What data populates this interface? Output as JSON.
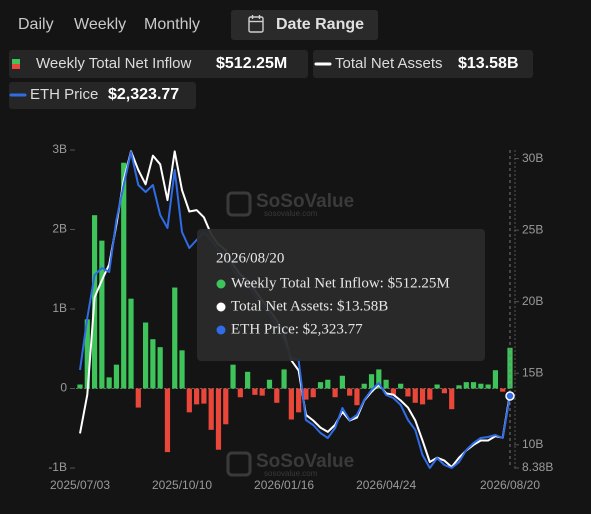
{
  "tabs": [
    "Daily",
    "Weekly",
    "Monthly"
  ],
  "active_tab": 1,
  "date_range": "Date Range",
  "chart_data": {
    "type": "combo",
    "categories": [
      "2025/07/03",
      null,
      null,
      null,
      null,
      null,
      null,
      null,
      null,
      null,
      null,
      null,
      null,
      null,
      "2025/10/10",
      null,
      null,
      null,
      null,
      null,
      null,
      null,
      null,
      null,
      null,
      null,
      null,
      null,
      "2026/01/16",
      null,
      null,
      null,
      null,
      null,
      null,
      null,
      null,
      null,
      null,
      null,
      null,
      null,
      "2026/04/24",
      null,
      null,
      null,
      null,
      null,
      null,
      null,
      null,
      null,
      null,
      null,
      null,
      null,
      null,
      null,
      null,
      "2026/08/20"
    ],
    "series": [
      {
        "name": "Weekly Total Net Inflow",
        "type": "bar",
        "color": "#3ec45a",
        "negative_color": "#e8473a",
        "values": [
          0.05,
          0.87,
          2.18,
          1.86,
          0.14,
          0.3,
          2.84,
          1.13,
          -0.24,
          0.83,
          0.62,
          0.52,
          -0.8,
          1.27,
          0.48,
          -0.3,
          -0.2,
          -0.19,
          -0.52,
          -0.77,
          -0.45,
          0.3,
          -0.11,
          0.21,
          -0.08,
          -0.09,
          0.11,
          -0.18,
          0.24,
          -0.39,
          -0.3,
          -0.14,
          -0.11,
          0.08,
          0.11,
          -0.11,
          0.16,
          -0.09,
          -0.21,
          0.06,
          0.18,
          0.24,
          0.11,
          -0.09,
          0.06,
          -0.1,
          -0.18,
          -0.2,
          -0.14,
          0.05,
          -0.06,
          -0.26,
          0.04,
          0.08,
          0.08,
          0.06,
          0.05,
          0.23,
          -0.04,
          0.51225
        ]
      },
      {
        "name": "Total Net Assets",
        "type": "line",
        "axis": "y2",
        "color": "#ffffff",
        "values": [
          10.8,
          13.5,
          20.3,
          21.5,
          22.6,
          25.4,
          28.5,
          30.5,
          29.2,
          28.2,
          30.2,
          29.6,
          27.1,
          30.5,
          27.8,
          26.3,
          26.4,
          25.9,
          24.7,
          24.0,
          23.6,
          22.6,
          21.9,
          21.5,
          20.8,
          20.1,
          19.4,
          18.7,
          17.7,
          15.9,
          15.2,
          12.1,
          11.7,
          11.2,
          10.9,
          11.4,
          12.3,
          11.7,
          11.9,
          13.1,
          13.7,
          14.2,
          13.6,
          13.5,
          13.1,
          12.6,
          11.7,
          10.3,
          8.8,
          9.1,
          8.9,
          8.45,
          9.1,
          9.6,
          10.0,
          10.3,
          10.3,
          10.6,
          10.5,
          13.58
        ]
      },
      {
        "name": "ETH Price",
        "type": "line",
        "axis": "y3",
        "color": "#2f6ce6",
        "values": [
          2657,
          3324,
          3876,
          3966,
          3915,
          4582,
          5031,
          5454,
          5031,
          4941,
          5031,
          4646,
          4479,
          5223,
          4428,
          4223,
          4325,
          4428,
          4325,
          4197,
          4133,
          3940,
          3812,
          3748,
          3620,
          3491,
          3363,
          3235,
          3042,
          2811,
          2786,
          2016,
          1952,
          1849,
          1785,
          1913,
          2170,
          2016,
          2080,
          2272,
          2401,
          2491,
          2337,
          2298,
          2208,
          2016,
          1888,
          1567,
          1400,
          1528,
          1438,
          1400,
          1477,
          1631,
          1721,
          1785,
          1798,
          1823,
          1785,
          2323.77
        ]
      }
    ],
    "ylim": [
      -1,
      3
    ],
    "yticks": [
      {
        "value": -1,
        "label": "-1B"
      },
      0,
      {
        "value": 1,
        "label": "1B"
      },
      {
        "value": 2,
        "label": "2B"
      },
      {
        "value": 3,
        "label": "3B"
      }
    ],
    "y2lim": [
      8.38,
      30.6
    ],
    "y2ticks": [
      {
        "value": 8.38,
        "label": "8.38B"
      },
      {
        "value": 10,
        "label": "10B"
      },
      {
        "value": 15,
        "label": "15B"
      },
      {
        "value": 20,
        "label": "20B"
      },
      {
        "value": 25,
        "label": "25B"
      },
      {
        "value": 30,
        "label": "30B"
      }
    ],
    "y3lim": [
      1400,
      5480
    ],
    "legend_values": [
      "$512.25M",
      "$13.58B",
      "$2,323.77"
    ],
    "tooltip": {
      "title": "2026/08/20",
      "items": [
        "Weekly Total Net Inflow: $512.25M",
        "Total Net Assets: $13.58B",
        "ETH Price: $2,323.77"
      ]
    },
    "watermark": "SoSoValue",
    "watermark_url": "sosovalue.com"
  }
}
